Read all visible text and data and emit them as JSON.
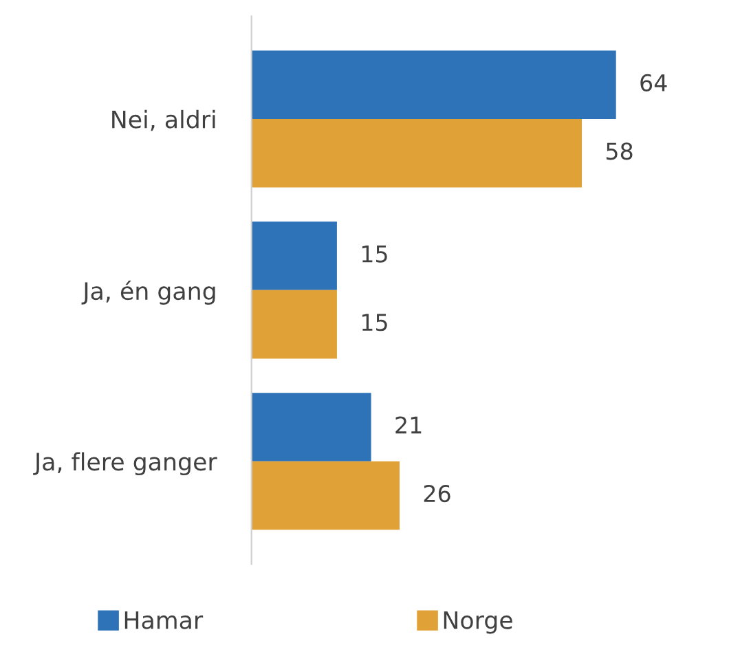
{
  "chart_data": {
    "type": "bar",
    "orientation": "horizontal",
    "categories": [
      "Nei, aldri",
      "Ja, én gang",
      "Ja, flere ganger"
    ],
    "series": [
      {
        "name": "Hamar",
        "color": "#2e72b8",
        "values": [
          64,
          15,
          21
        ]
      },
      {
        "name": "Norge",
        "color": "#e0a136",
        "values": [
          58,
          15,
          26
        ]
      }
    ],
    "data_labels": true,
    "legend": "bottom",
    "grid": false
  }
}
